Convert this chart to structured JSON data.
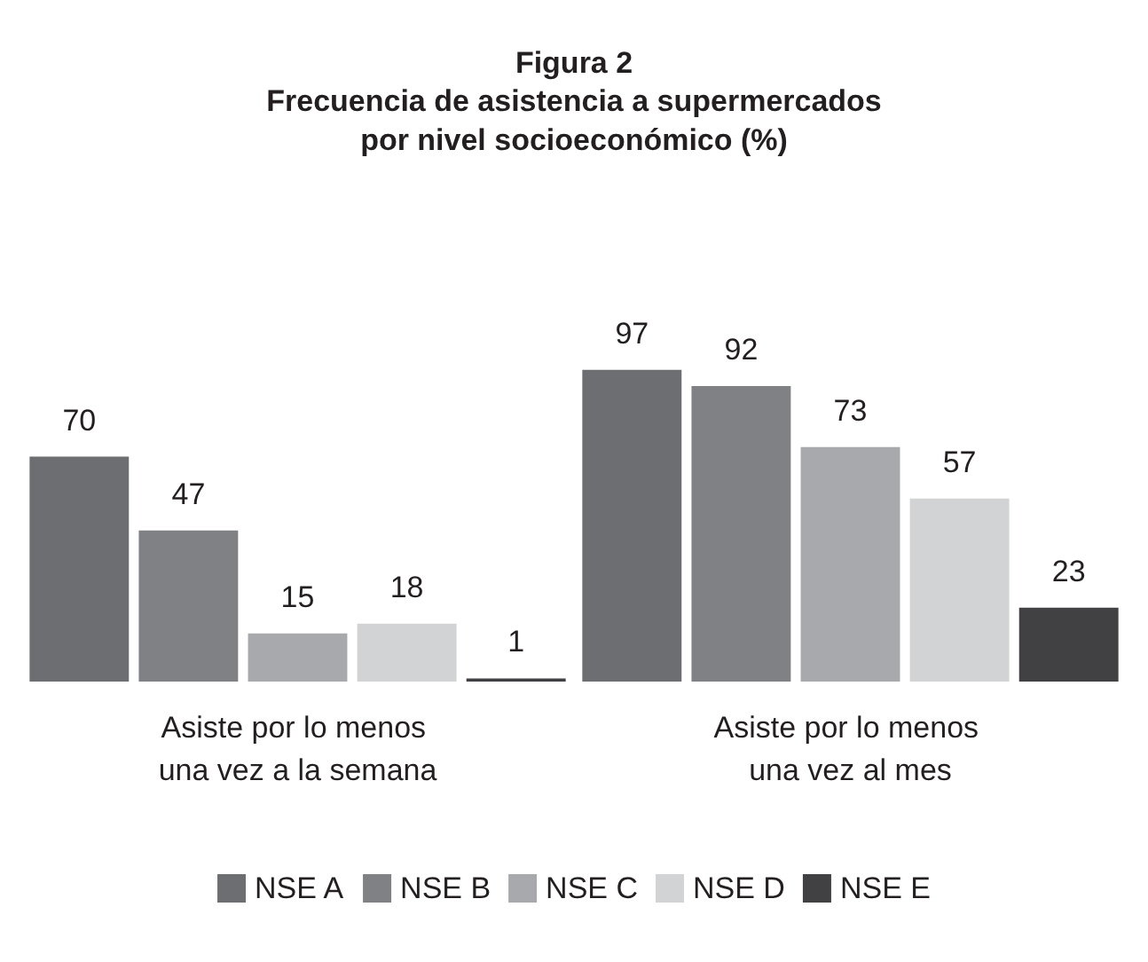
{
  "chart_data": {
    "type": "bar",
    "title": "Figura 2",
    "subtitle": "Frecuencia de asistencia a supermercados\npor nivel socioeconómico (%)",
    "categories": [
      "Asiste por lo menos una vez a la semana",
      "Asiste por lo menos una vez al mes"
    ],
    "series": [
      {
        "name": "NSE A",
        "color": "#6d6e71",
        "values": [
          70,
          97
        ]
      },
      {
        "name": "NSE B",
        "color": "#808184",
        "values": [
          47,
          92
        ]
      },
      {
        "name": "NSE C",
        "color": "#a7a9ac",
        "values": [
          15,
          73
        ]
      },
      {
        "name": "NSE D",
        "color": "#d1d3d4",
        "values": [
          18,
          57
        ]
      },
      {
        "name": "NSE E",
        "color": "#414042",
        "values": [
          1,
          23
        ]
      }
    ],
    "data_labels": true,
    "legend": "bottom"
  }
}
